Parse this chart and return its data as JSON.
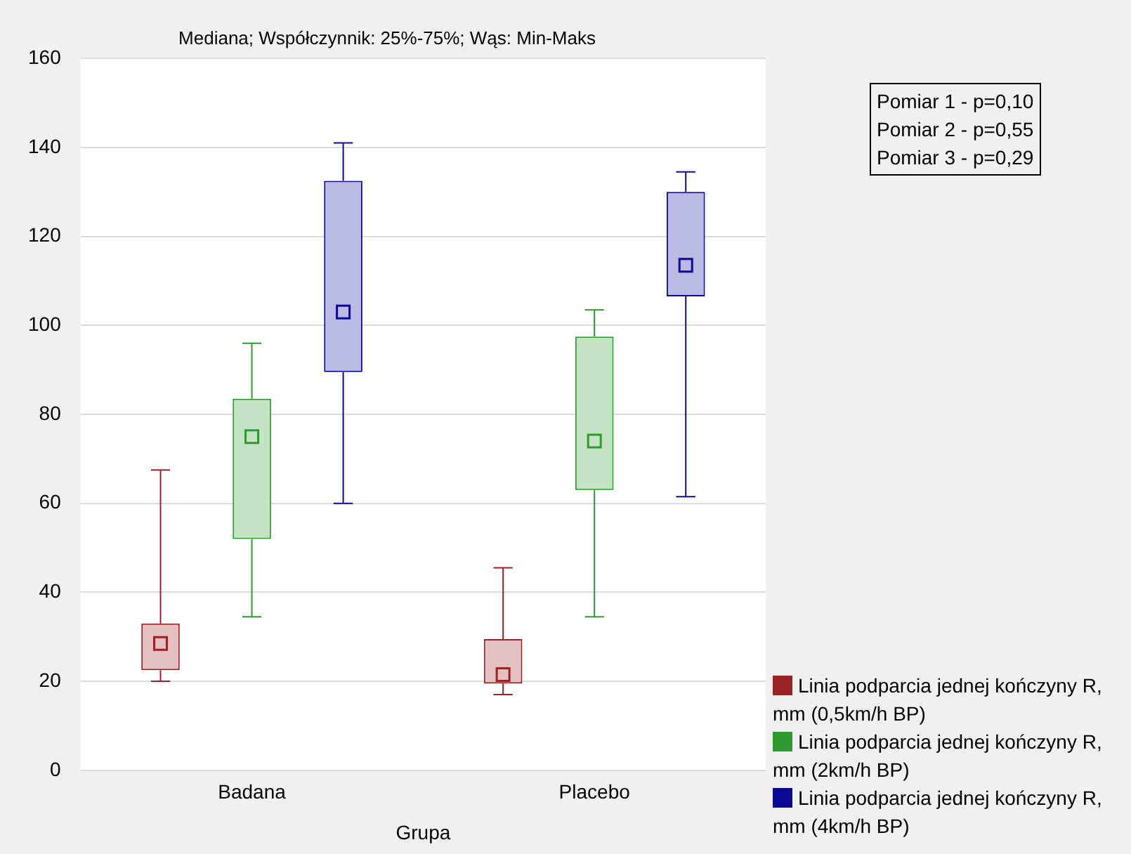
{
  "chart_data": {
    "type": "box",
    "title": "Mediana; Współczynnik: 25%-75%; Wąs: Min-Maks",
    "xlabel": "Grupa",
    "categories": [
      "Badana",
      "Placebo"
    ],
    "ylim": [
      0,
      160
    ],
    "yticks": [
      0,
      20,
      40,
      60,
      80,
      100,
      120,
      140,
      160
    ],
    "grid": "y",
    "legend": "bottom right",
    "marker": "square",
    "annotations": [
      "Pomiar 1 - p=0,10",
      "Pomiar 2 - p=0,55",
      "Pomiar 3 - p=0,29"
    ],
    "series": [
      {
        "name": "Linia podparcia jednej kończyny R, mm (0,5km/h BP)",
        "color": "#9b2323",
        "boxes": [
          {
            "low": 20,
            "q1": 22.5,
            "median": 28.5,
            "q3": 33,
            "high": 67.5
          },
          {
            "low": 17,
            "q1": 19.5,
            "median": 21.5,
            "q3": 29.5,
            "high": 45.5
          }
        ]
      },
      {
        "name": "Linia podparcia jednej kończyny R, mm (2km/h BP)",
        "color": "#2e9a2e",
        "boxes": [
          {
            "low": 34.5,
            "q1": 52,
            "median": 75,
            "q3": 83.5,
            "high": 96
          },
          {
            "low": 34.5,
            "q1": 63,
            "median": 74,
            "q3": 97.5,
            "high": 103.5
          }
        ]
      },
      {
        "name": "Linia podparcia jednej kończyny R, mm (4km/h BP)",
        "color": "#0a0a96",
        "boxes": [
          {
            "low": 60,
            "q1": 89.5,
            "median": 103,
            "q3": 132.5,
            "high": 141
          },
          {
            "low": 61.5,
            "q1": 106.5,
            "median": 113.5,
            "q3": 130,
            "high": 134.5
          }
        ]
      }
    ]
  }
}
